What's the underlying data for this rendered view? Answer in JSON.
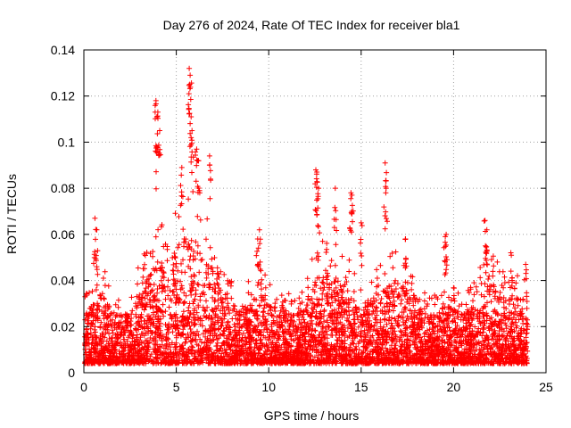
{
  "chart_data": {
    "type": "scatter",
    "title": "Day 276 of 2024, Rate Of TEC Index for receiver bla1",
    "xlabel": "GPS time / hours",
    "ylabel": "ROTI / TECUs",
    "xlim": [
      0,
      25
    ],
    "ylim": [
      0,
      0.14
    ],
    "x_ticks": [
      "0",
      "5",
      "10",
      "15",
      "20",
      "25"
    ],
    "y_ticks": [
      "0",
      "0.02",
      "0.04",
      "0.06",
      "0.08",
      "0.1",
      "0.12",
      "0.14"
    ],
    "grid": true,
    "marker": "plus",
    "colors": {
      "series": "#ff0000",
      "grid": "#a0a0a0",
      "axis": "#000000"
    },
    "envelope_hours": [
      0.0,
      0.5,
      1.0,
      1.5,
      2.0,
      2.5,
      3.0,
      3.5,
      4.0,
      4.5,
      5.0,
      5.5,
      6.0,
      6.5,
      7.0,
      7.5,
      8.0,
      8.5,
      9.0,
      9.5,
      10.0,
      10.5,
      11.0,
      11.5,
      12.0,
      12.5,
      13.0,
      13.5,
      14.0,
      14.5,
      15.0,
      15.5,
      16.0,
      16.5,
      17.0,
      17.5,
      18.0,
      18.5,
      19.0,
      19.5,
      20.0,
      20.5,
      21.0,
      21.5,
      22.0,
      22.5,
      23.0,
      23.5,
      24.0
    ],
    "envelope_typical_max": [
      0.025,
      0.03,
      0.035,
      0.028,
      0.025,
      0.028,
      0.035,
      0.042,
      0.05,
      0.048,
      0.055,
      0.06,
      0.058,
      0.052,
      0.045,
      0.035,
      0.03,
      0.028,
      0.03,
      0.035,
      0.03,
      0.028,
      0.026,
      0.025,
      0.03,
      0.04,
      0.045,
      0.042,
      0.04,
      0.035,
      0.03,
      0.032,
      0.035,
      0.038,
      0.04,
      0.036,
      0.032,
      0.028,
      0.025,
      0.03,
      0.028,
      0.025,
      0.03,
      0.035,
      0.04,
      0.035,
      0.03,
      0.032,
      0.025
    ],
    "peaks": [
      {
        "x": 0.6,
        "y": 0.067
      },
      {
        "x": 0.7,
        "y": 0.062
      },
      {
        "x": 3.9,
        "y": 0.118
      },
      {
        "x": 4.0,
        "y": 0.113
      },
      {
        "x": 4.1,
        "y": 0.105
      },
      {
        "x": 3.95,
        "y": 0.098
      },
      {
        "x": 5.7,
        "y": 0.132
      },
      {
        "x": 5.75,
        "y": 0.129
      },
      {
        "x": 5.8,
        "y": 0.111
      },
      {
        "x": 5.85,
        "y": 0.105
      },
      {
        "x": 6.1,
        "y": 0.097
      },
      {
        "x": 6.2,
        "y": 0.092
      },
      {
        "x": 6.8,
        "y": 0.094
      },
      {
        "x": 5.3,
        "y": 0.089
      },
      {
        "x": 9.5,
        "y": 0.062
      },
      {
        "x": 9.4,
        "y": 0.058
      },
      {
        "x": 12.55,
        "y": 0.088
      },
      {
        "x": 12.6,
        "y": 0.087
      },
      {
        "x": 12.7,
        "y": 0.08
      },
      {
        "x": 13.6,
        "y": 0.08
      },
      {
        "x": 14.5,
        "y": 0.077
      },
      {
        "x": 14.45,
        "y": 0.078
      },
      {
        "x": 15.0,
        "y": 0.065
      },
      {
        "x": 16.3,
        "y": 0.091
      },
      {
        "x": 16.35,
        "y": 0.08
      },
      {
        "x": 17.4,
        "y": 0.058
      },
      {
        "x": 19.6,
        "y": 0.06
      },
      {
        "x": 19.55,
        "y": 0.059
      },
      {
        "x": 21.7,
        "y": 0.066
      },
      {
        "x": 21.8,
        "y": 0.062
      },
      {
        "x": 23.1,
        "y": 0.052
      },
      {
        "x": 23.9,
        "y": 0.047
      }
    ]
  }
}
